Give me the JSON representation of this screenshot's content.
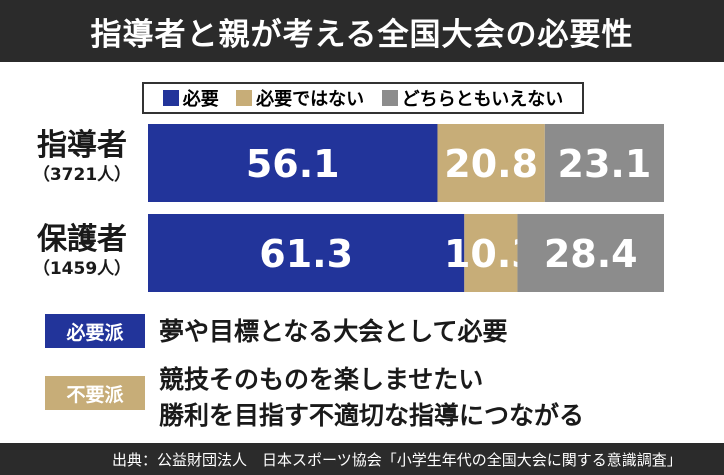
{
  "title": "指導者と親が考える全国大会の必要性",
  "colors": {
    "necessary": "#22349a",
    "not_necessary": "#c7ad78",
    "neither": "#8c8c8c",
    "dark_band": "#2b2b2b"
  },
  "chart_data": {
    "type": "bar",
    "stacked": true,
    "orientation": "horizontal",
    "title": "指導者と親が考える全国大会の必要性",
    "categories": [
      {
        "label": "指導者",
        "sub": "（3721人）"
      },
      {
        "label": "保護者",
        "sub": "（1459人）"
      }
    ],
    "series": [
      {
        "name": "必要",
        "values": [
          56.1,
          61.3
        ]
      },
      {
        "name": "必要ではない",
        "values": [
          20.8,
          10.3
        ]
      },
      {
        "name": "どちらともいえない",
        "values": [
          23.1,
          28.4
        ]
      }
    ],
    "xlim": [
      0,
      100
    ],
    "legend": "top",
    "grid": false
  },
  "notes": [
    {
      "tag": "必要派",
      "lines": [
        "夢や目標となる大会として必要"
      ]
    },
    {
      "tag": "不要派",
      "lines": [
        "競技そのものを楽しませたい",
        "勝利を目指す不適切な指導につながる"
      ]
    }
  ],
  "source": "出典：公益財団法人　日本スポーツ協会「小学生年代の全国大会に関する意識調査」"
}
